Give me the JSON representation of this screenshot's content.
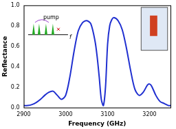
{
  "chart_data": {
    "type": "line",
    "x_label": "Frequency (GHz)",
    "y_label": "Reflectance",
    "annotations": [
      "pump",
      "f"
    ],
    "color": "#1f2fd0",
    "x": [
      2900,
      2910,
      2920,
      2930,
      2940,
      2950,
      2960,
      2970,
      2980,
      2990,
      3000,
      3010,
      3020,
      3030,
      3040,
      3050,
      3060,
      3070,
      3075,
      3080,
      3085,
      3090,
      3095,
      3100,
      3105,
      3110,
      3115,
      3125,
      3135,
      3145,
      3155,
      3165,
      3175,
      3185,
      3195,
      3200,
      3205,
      3215,
      3225,
      3235,
      3245,
      3250
    ],
    "values": [
      0.02,
      0.02,
      0.03,
      0.05,
      0.08,
      0.12,
      0.15,
      0.16,
      0.12,
      0.08,
      0.12,
      0.3,
      0.55,
      0.75,
      0.83,
      0.85,
      0.82,
      0.65,
      0.5,
      0.3,
      0.08,
      0.02,
      0.2,
      0.62,
      0.8,
      0.86,
      0.88,
      0.85,
      0.76,
      0.58,
      0.36,
      0.18,
      0.12,
      0.15,
      0.22,
      0.23,
      0.21,
      0.12,
      0.06,
      0.04,
      0.02,
      0.02
    ],
    "xlim": [
      2900,
      3250
    ],
    "xticks": [
      2900,
      3000,
      3100,
      3200
    ],
    "ylim": [
      0,
      1
    ],
    "yticks": [
      {
        "value": 0,
        "label": "0.0"
      },
      {
        "value": 0.2,
        "label": "0.2"
      },
      {
        "value": 0.4,
        "label": "0.4"
      },
      {
        "value": 0.6,
        "label": "0.6"
      },
      {
        "value": 0.8,
        "label": "0.8"
      },
      {
        "value": 1,
        "label": "1.0"
      }
    ],
    "grid": false
  }
}
